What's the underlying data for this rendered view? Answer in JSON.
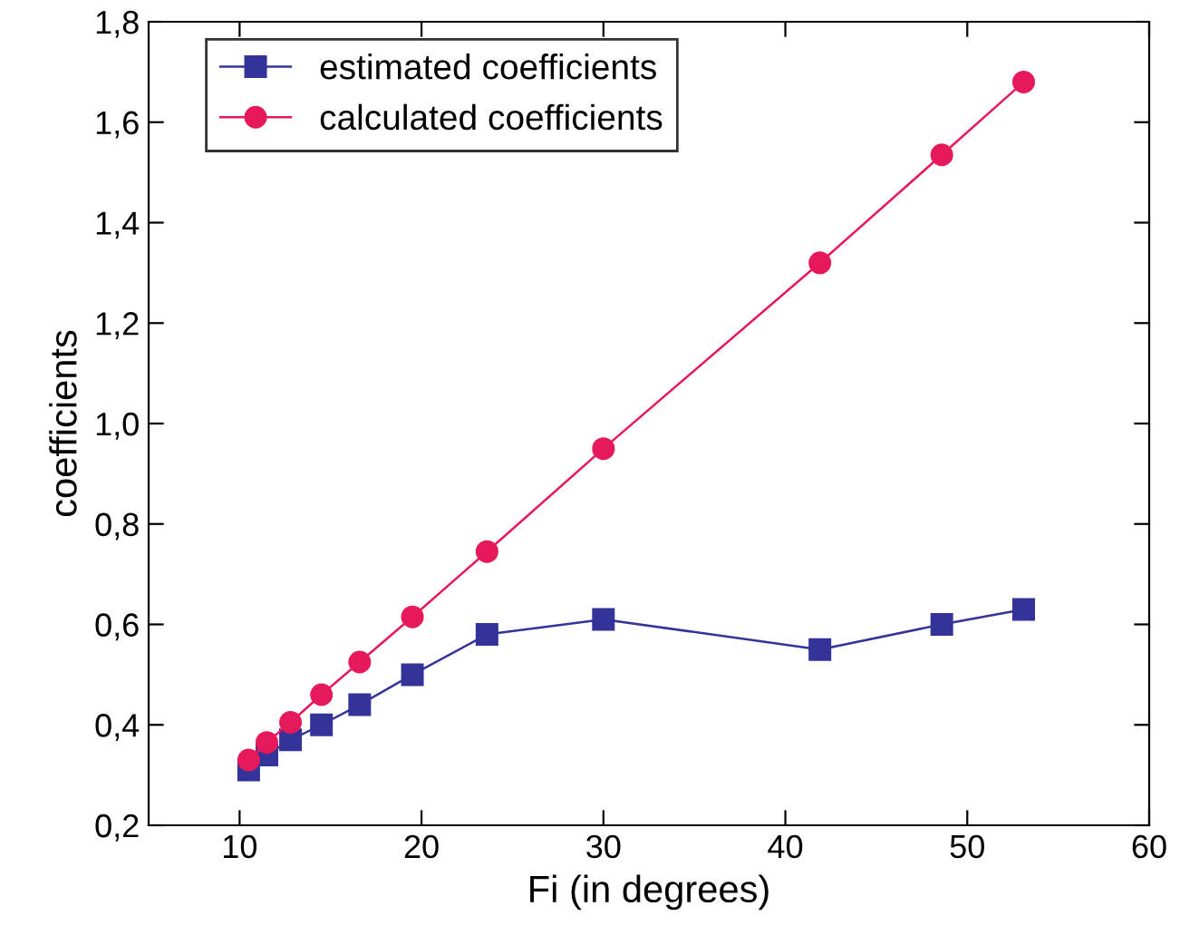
{
  "chart_data": {
    "type": "line",
    "xlabel": "Fi (in degrees)",
    "ylabel": "coefficients",
    "x": [
      10.5,
      11.5,
      12.8,
      14.5,
      16.6,
      19.5,
      23.6,
      30,
      41.9,
      48.6,
      53.1
    ],
    "series": [
      {
        "name": "estimated coefficients",
        "color": "#333399",
        "marker": "square",
        "values": [
          0.31,
          0.34,
          0.37,
          0.4,
          0.44,
          0.5,
          0.58,
          0.61,
          0.55,
          0.6,
          0.63
        ]
      },
      {
        "name": "calculated coefficients",
        "color": "#e6195a",
        "marker": "circle",
        "values": [
          0.33,
          0.365,
          0.405,
          0.46,
          0.525,
          0.615,
          0.745,
          0.95,
          1.32,
          1.535,
          1.68
        ]
      }
    ],
    "xlim": [
      5,
      60
    ],
    "xticks": [
      10,
      20,
      30,
      40,
      50,
      60
    ],
    "ylim": [
      0.2,
      1.8
    ],
    "yticks": [
      {
        "value": 0.2,
        "label": "0,2"
      },
      {
        "value": 0.4,
        "label": "0,4"
      },
      {
        "value": 0.6,
        "label": "0,6"
      },
      {
        "value": 0.8,
        "label": "0,8"
      },
      {
        "value": 1.0,
        "label": "1,0"
      },
      {
        "value": 1.2,
        "label": "1,2"
      },
      {
        "value": 1.4,
        "label": "1,4"
      },
      {
        "value": 1.6,
        "label": "1,6"
      },
      {
        "value": 1.8,
        "label": "1,8"
      }
    ],
    "legend": "top left",
    "grid": false,
    "line_style": "solid"
  }
}
